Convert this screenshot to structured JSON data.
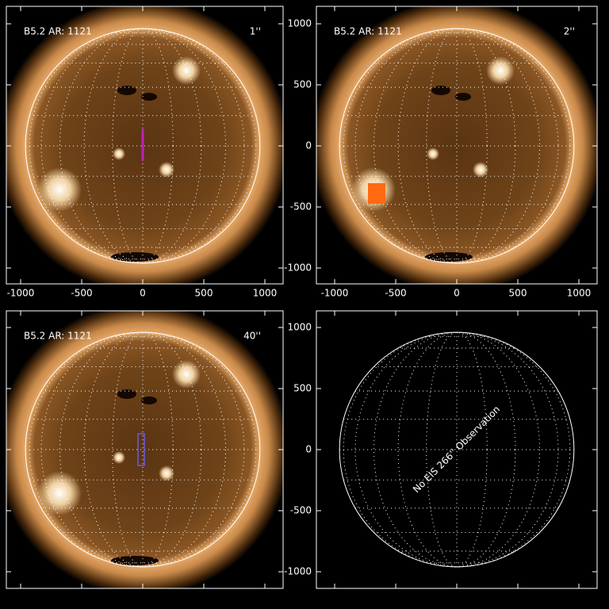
{
  "axes": {
    "xticks": [
      -1000,
      -500,
      0,
      500,
      1000
    ],
    "yticks": [
      -1000,
      -500,
      0,
      500,
      1000
    ]
  },
  "panels": [
    {
      "title": "B5.2 AR: 1121",
      "slit": "1''",
      "color": "#c020c0"
    },
    {
      "title": "B5.2 AR: 1121",
      "slit": "2''",
      "color": "#ff6a10"
    },
    {
      "title": "B5.2 AR: 1121",
      "slit": "40''",
      "color": "#6a5ae8"
    },
    {
      "message": "No EIS 266'' Observation"
    }
  ]
}
